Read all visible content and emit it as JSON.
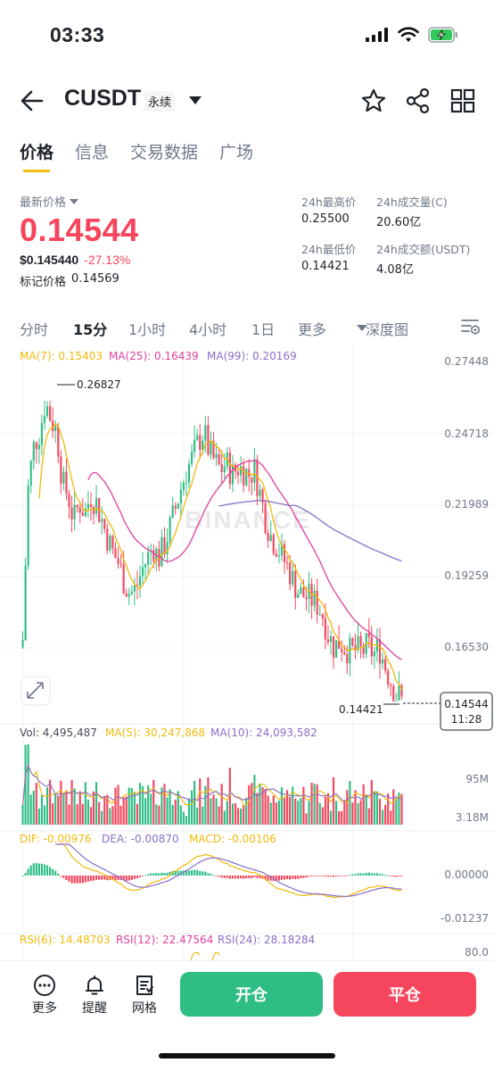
{
  "status_bar": {
    "time": "03:33",
    "icons": [
      "signal-icon",
      "wifi-icon",
      "battery-charging-icon"
    ]
  },
  "nav": {
    "pair": "CUSDT",
    "contract_type": "永续",
    "icons": [
      "back-arrow-icon",
      "star-icon",
      "share-icon",
      "grid-icon"
    ]
  },
  "tabs": [
    {
      "label": "价格",
      "active": true
    },
    {
      "label": "信息",
      "active": false
    },
    {
      "label": "交易数据",
      "active": false
    },
    {
      "label": "广场",
      "active": false
    }
  ],
  "price": {
    "latest_label": "最新价格",
    "last_price": "0.14544",
    "usd_price": "$0.145440",
    "change": "-27.13%",
    "mark_label": "标记价格",
    "mark_price": "0.14569"
  },
  "stats": {
    "high_label": "24h最高价",
    "high_value": "0.25500",
    "vol_c_label": "24h成交量(C)",
    "vol_c_value": "20.60亿",
    "low_label": "24h最低价",
    "low_value": "0.14421",
    "vol_usdt_label": "24h成交额(USDT)",
    "vol_usdt_value": "4.08亿"
  },
  "intervals": [
    {
      "label": "分时",
      "active": false
    },
    {
      "label": "15分",
      "active": true
    },
    {
      "label": "1小时",
      "active": false
    },
    {
      "label": "4小时",
      "active": false
    },
    {
      "label": "1日",
      "active": false
    },
    {
      "label": "更多",
      "active": false
    },
    {
      "label": "深度图",
      "active": false
    }
  ],
  "chart": {
    "ma_legend": {
      "ma7": "MA(7): 0.15403",
      "ma25": "MA(25): 0.16439",
      "ma99": "MA(99): 0.20169"
    },
    "price_axis": [
      "0.27448",
      "0.24718",
      "0.21989",
      "0.19259",
      "0.16530"
    ],
    "high_marker": "0.26827",
    "low_marker": "0.14421",
    "current_price_tag": "0.14544",
    "countdown": "11:28",
    "watermark": "BINANCE",
    "vol_legend": {
      "vol": "Vol: 4,495,487",
      "ma5": "MA(5): 30,247,868",
      "ma10": "MA(10): 24,093,582"
    },
    "vol_axis": [
      "95M",
      "3.18M"
    ],
    "macd_legend": {
      "dif": "DIF: -0.00976",
      "dea": "DEA: -0.00870",
      "macd": "MACD: -0.00106"
    },
    "macd_axis": [
      "0.00000",
      "-0.01237"
    ],
    "rsi_legend": {
      "rsi6": "RSI(6): 14.48703",
      "rsi12": "RSI(12): 22.47564",
      "rsi24": "RSI(24): 28.18284"
    },
    "rsi_axis": [
      "80.0"
    ],
    "colors": {
      "up": "#2ebd85",
      "down": "#f6465d",
      "ma7": "#f0b90b",
      "ma25": "#e040a0",
      "ma99": "#8a6fc7"
    }
  },
  "chart_data": {
    "type": "candlestick",
    "symbol": "CUSDT",
    "interval": "15分",
    "ylim": [
      0.14,
      0.2775
    ],
    "high": 0.26827,
    "low": 0.14421,
    "last": 0.14544,
    "close_trend": [
      0.168,
      0.23,
      0.245,
      0.25,
      0.262,
      0.255,
      0.25,
      0.23,
      0.225,
      0.215,
      0.222,
      0.218,
      0.225,
      0.222,
      0.215,
      0.208,
      0.202,
      0.198,
      0.19,
      0.186,
      0.188,
      0.195,
      0.2,
      0.205,
      0.2,
      0.205,
      0.212,
      0.22,
      0.228,
      0.235,
      0.24,
      0.246,
      0.25,
      0.242,
      0.238,
      0.235,
      0.238,
      0.233,
      0.236,
      0.235,
      0.233,
      0.235,
      0.225,
      0.215,
      0.208,
      0.205,
      0.2,
      0.196,
      0.19,
      0.186,
      0.185,
      0.184,
      0.182,
      0.178,
      0.17,
      0.165,
      0.167,
      0.165,
      0.163,
      0.164,
      0.163,
      0.166,
      0.162,
      0.165,
      0.158,
      0.152,
      0.146,
      0.14544
    ]
  }
}
